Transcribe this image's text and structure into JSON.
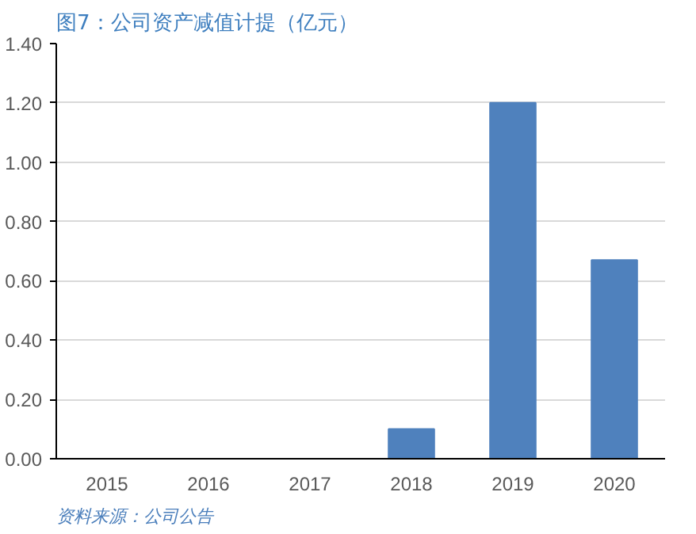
{
  "chart_data": {
    "type": "bar",
    "title": "图7：公司资产减值计提（亿元）",
    "categories": [
      "2015",
      "2016",
      "2017",
      "2018",
      "2019",
      "2020"
    ],
    "values": [
      0,
      0,
      0,
      0.1,
      1.2,
      0.67
    ],
    "color": "#4f81bd",
    "ylim": [
      0,
      1.4
    ],
    "yticks": [
      {
        "value": 0,
        "label": "0.00"
      },
      {
        "value": 0.2,
        "label": "0.20"
      },
      {
        "value": 0.4,
        "label": "0.40"
      },
      {
        "value": 0.6,
        "label": "0.60"
      },
      {
        "value": 0.8,
        "label": "0.80"
      },
      {
        "value": 1.0,
        "label": "1.00"
      },
      {
        "value": 1.2,
        "label": "1.20"
      },
      {
        "value": 1.4,
        "label": "1.40"
      }
    ],
    "grid": "y",
    "annotations": [
      "资料来源：公司公告"
    ]
  }
}
